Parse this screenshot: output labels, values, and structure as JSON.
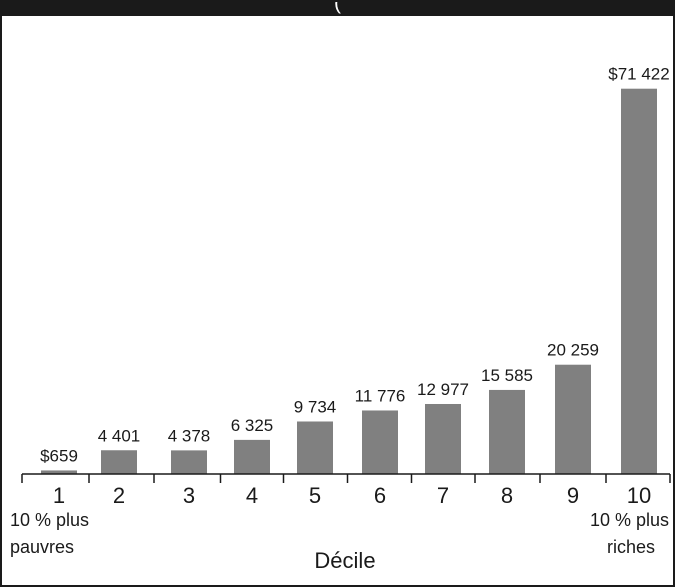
{
  "chart_data": {
    "type": "bar",
    "title": "(",
    "categories": [
      "1",
      "2",
      "3",
      "4",
      "5",
      "6",
      "7",
      "8",
      "9",
      "10"
    ],
    "values": [
      659,
      4401,
      4378,
      6325,
      9734,
      11776,
      12977,
      15585,
      20259,
      71422
    ],
    "value_labels": [
      "$659",
      "4 401",
      "4 378",
      "6 325",
      "9 734",
      "11 776",
      "12 977",
      "15 585",
      "20 259",
      "$71 422"
    ],
    "xlabel": "Décile",
    "ylabel": "",
    "ylim": [
      0,
      76000
    ],
    "grid": false,
    "bar_color": "#808080",
    "notes": {
      "lowest": [
        "10 % plus",
        "pauvres"
      ],
      "highest": [
        "10 % plus",
        "riches"
      ]
    }
  }
}
